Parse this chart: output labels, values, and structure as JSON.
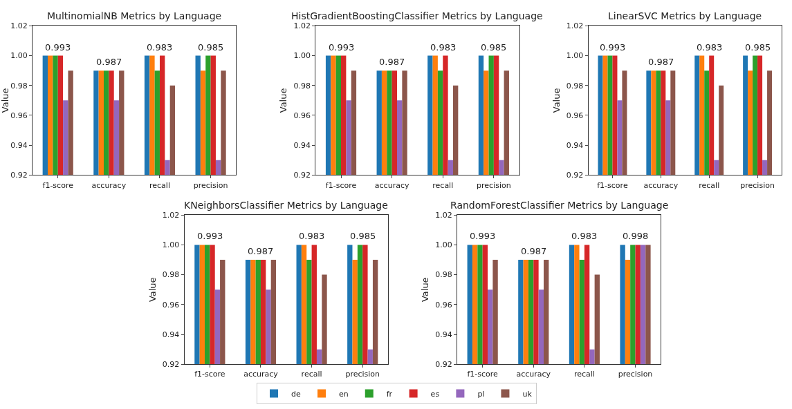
{
  "chart_data": [
    {
      "type": "bar",
      "title": "MultinomialNB Metrics by Language",
      "ylabel": "Value",
      "categories": [
        "f1-score",
        "accuracy",
        "recall",
        "precision"
      ],
      "ylim": [
        0.92,
        1.02
      ],
      "yticks": [
        {
          "value": 0.92,
          "label": "0.92"
        },
        {
          "value": 0.94,
          "label": "0.94"
        },
        {
          "value": 0.96,
          "label": "0.96"
        },
        {
          "value": 0.98,
          "label": "0.98"
        },
        {
          "value": 1.0,
          "label": "1.00"
        },
        {
          "value": 1.02,
          "label": "1.02"
        }
      ],
      "legend": "bottom",
      "series": [
        {
          "name": "de",
          "color": "#1f77b4",
          "values": [
            1.0,
            0.99,
            1.0,
            1.0
          ]
        },
        {
          "name": "en",
          "color": "#ff7f0e",
          "values": [
            1.0,
            0.99,
            1.0,
            0.99
          ]
        },
        {
          "name": "fr",
          "color": "#2ca02c",
          "values": [
            1.0,
            0.99,
            0.99,
            1.0
          ]
        },
        {
          "name": "es",
          "color": "#d62728",
          "values": [
            1.0,
            0.99,
            1.0,
            1.0
          ]
        },
        {
          "name": "pl",
          "color": "#9467bd",
          "values": [
            0.97,
            0.97,
            0.93,
            0.93
          ]
        },
        {
          "name": "uk",
          "color": "#8c564b",
          "values": [
            0.99,
            0.99,
            0.98,
            0.99
          ]
        }
      ],
      "annotations": [
        {
          "text": "0.993",
          "x": "f1-score",
          "y": 1.0
        },
        {
          "text": "0.987",
          "x": "accuracy",
          "y": 0.99
        },
        {
          "text": "0.983",
          "x": "recall",
          "y": 1.0
        },
        {
          "text": "0.985",
          "x": "precision",
          "y": 1.0
        }
      ]
    },
    {
      "type": "bar",
      "title": "HistGradientBoostingClassifier Metrics by Language",
      "ylabel": "Value",
      "categories": [
        "f1-score",
        "accuracy",
        "recall",
        "precision"
      ],
      "ylim": [
        0.92,
        1.02
      ],
      "yticks": [
        {
          "value": 0.92,
          "label": "0.92"
        },
        {
          "value": 0.94,
          "label": "0.94"
        },
        {
          "value": 0.96,
          "label": "0.96"
        },
        {
          "value": 0.98,
          "label": "0.98"
        },
        {
          "value": 1.0,
          "label": "1.00"
        },
        {
          "value": 1.02,
          "label": "1.02"
        }
      ],
      "series": [
        {
          "color": "#1f77b4",
          "values": [
            1.0,
            0.99,
            1.0,
            1.0
          ]
        },
        {
          "color": "#ff7f0e",
          "values": [
            1.0,
            0.99,
            1.0,
            0.99
          ]
        },
        {
          "color": "#2ca02c",
          "values": [
            1.0,
            0.99,
            0.99,
            1.0
          ]
        },
        {
          "color": "#d62728",
          "values": [
            1.0,
            0.99,
            1.0,
            1.0
          ]
        },
        {
          "color": "#9467bd",
          "values": [
            0.97,
            0.97,
            0.93,
            0.93
          ]
        },
        {
          "color": "#8c564b",
          "values": [
            0.99,
            0.99,
            0.98,
            0.99
          ]
        }
      ],
      "annotations": [
        {
          "text": "0.993",
          "x": "f1-score",
          "y": 1.0
        },
        {
          "text": "0.987",
          "x": "accuracy",
          "y": 0.99
        },
        {
          "text": "0.983",
          "x": "recall",
          "y": 1.0
        },
        {
          "text": "0.985",
          "x": "precision",
          "y": 1.0
        }
      ]
    },
    {
      "type": "bar",
      "title": "LinearSVC Metrics by Language",
      "ylabel": "Value",
      "categories": [
        "f1-score",
        "accuracy",
        "recall",
        "precision"
      ],
      "ylim": [
        0.92,
        1.02
      ],
      "yticks": [
        {
          "value": 0.92,
          "label": "0.92"
        },
        {
          "value": 0.94,
          "label": "0.94"
        },
        {
          "value": 0.96,
          "label": "0.96"
        },
        {
          "value": 0.98,
          "label": "0.98"
        },
        {
          "value": 1.0,
          "label": "1.00"
        },
        {
          "value": 1.02,
          "label": "1.02"
        }
      ],
      "series": [
        {
          "color": "#1f77b4",
          "values": [
            1.0,
            0.99,
            1.0,
            1.0
          ]
        },
        {
          "color": "#ff7f0e",
          "values": [
            1.0,
            0.99,
            1.0,
            0.99
          ]
        },
        {
          "color": "#2ca02c",
          "values": [
            1.0,
            0.99,
            0.99,
            1.0
          ]
        },
        {
          "color": "#d62728",
          "values": [
            1.0,
            0.99,
            1.0,
            1.0
          ]
        },
        {
          "color": "#9467bd",
          "values": [
            0.97,
            0.97,
            0.93,
            0.93
          ]
        },
        {
          "color": "#8c564b",
          "values": [
            0.99,
            0.99,
            0.98,
            0.99
          ]
        }
      ],
      "annotations": [
        {
          "text": "0.993",
          "x": "f1-score",
          "y": 1.0
        },
        {
          "text": "0.987",
          "x": "accuracy",
          "y": 0.99
        },
        {
          "text": "0.983",
          "x": "recall",
          "y": 1.0
        },
        {
          "text": "0.985",
          "x": "precision",
          "y": 1.0
        }
      ]
    },
    {
      "type": "bar",
      "title": "KNeighborsClassifier Metrics by Language",
      "ylabel": "Value",
      "categories": [
        "f1-score",
        "accuracy",
        "recall",
        "precision"
      ],
      "ylim": [
        0.92,
        1.02
      ],
      "yticks": [
        {
          "value": 0.92,
          "label": "0.92"
        },
        {
          "value": 0.94,
          "label": "0.94"
        },
        {
          "value": 0.96,
          "label": "0.96"
        },
        {
          "value": 0.98,
          "label": "0.98"
        },
        {
          "value": 1.0,
          "label": "1.00"
        },
        {
          "value": 1.02,
          "label": "1.02"
        }
      ],
      "series": [
        {
          "color": "#1f77b4",
          "values": [
            1.0,
            0.99,
            1.0,
            1.0
          ]
        },
        {
          "color": "#ff7f0e",
          "values": [
            1.0,
            0.99,
            1.0,
            0.99
          ]
        },
        {
          "color": "#2ca02c",
          "values": [
            1.0,
            0.99,
            0.99,
            1.0
          ]
        },
        {
          "color": "#d62728",
          "values": [
            1.0,
            0.99,
            1.0,
            1.0
          ]
        },
        {
          "color": "#9467bd",
          "values": [
            0.97,
            0.97,
            0.93,
            0.93
          ]
        },
        {
          "color": "#8c564b",
          "values": [
            0.99,
            0.99,
            0.98,
            0.99
          ]
        }
      ],
      "annotations": [
        {
          "text": "0.993",
          "x": "f1-score",
          "y": 1.0
        },
        {
          "text": "0.987",
          "x": "accuracy",
          "y": 0.99
        },
        {
          "text": "0.983",
          "x": "recall",
          "y": 1.0
        },
        {
          "text": "0.985",
          "x": "precision",
          "y": 1.0
        }
      ]
    },
    {
      "type": "bar",
      "title": "RandomForestClassifier Metrics by Language",
      "ylabel": "Value",
      "categories": [
        "f1-score",
        "accuracy",
        "recall",
        "precision"
      ],
      "ylim": [
        0.92,
        1.02
      ],
      "yticks": [
        {
          "value": 0.92,
          "label": "0.92"
        },
        {
          "value": 0.94,
          "label": "0.94"
        },
        {
          "value": 0.96,
          "label": "0.96"
        },
        {
          "value": 0.98,
          "label": "0.98"
        },
        {
          "value": 1.0,
          "label": "1.00"
        },
        {
          "value": 1.02,
          "label": "1.02"
        }
      ],
      "series": [
        {
          "color": "#1f77b4",
          "values": [
            1.0,
            0.99,
            1.0,
            1.0
          ]
        },
        {
          "color": "#ff7f0e",
          "values": [
            1.0,
            0.99,
            1.0,
            0.99
          ]
        },
        {
          "color": "#2ca02c",
          "values": [
            1.0,
            0.99,
            0.99,
            1.0
          ]
        },
        {
          "color": "#d62728",
          "values": [
            1.0,
            0.99,
            1.0,
            1.0
          ]
        },
        {
          "color": "#9467bd",
          "values": [
            0.97,
            0.97,
            0.93,
            1.0
          ]
        },
        {
          "color": "#8c564b",
          "values": [
            0.99,
            0.99,
            0.98,
            1.0
          ]
        }
      ],
      "annotations": [
        {
          "text": "0.993",
          "x": "f1-score",
          "y": 1.0
        },
        {
          "text": "0.987",
          "x": "accuracy",
          "y": 0.99
        },
        {
          "text": "0.983",
          "x": "recall",
          "y": 1.0
        },
        {
          "text": "0.998",
          "x": "precision",
          "y": 1.0
        }
      ]
    }
  ]
}
